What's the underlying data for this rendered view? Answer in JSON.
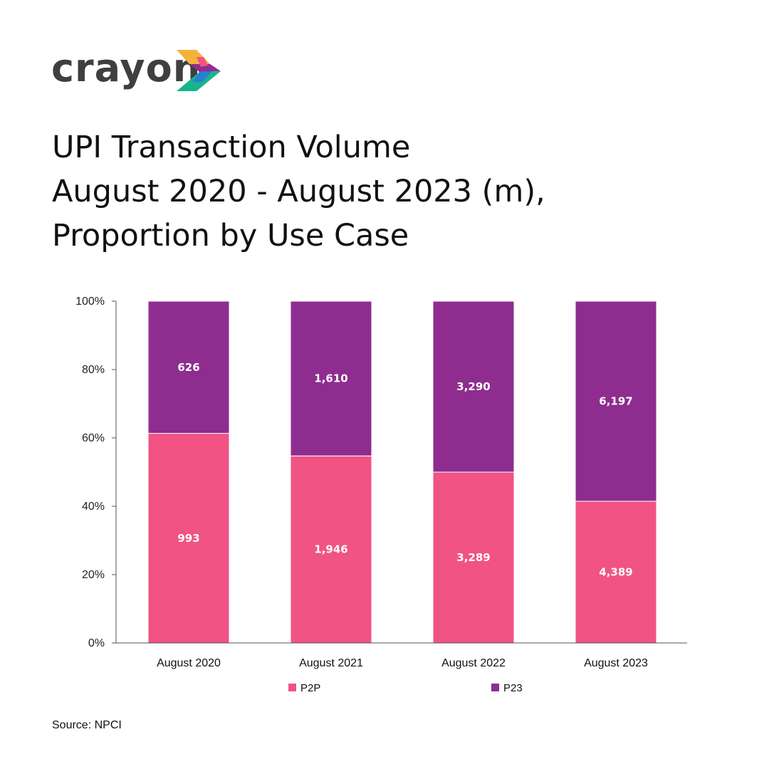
{
  "brand": {
    "name": "crayon",
    "text_color": "#3f3f3f"
  },
  "title_lines": [
    "UPI Transaction Volume",
    "August 2020 - August 2023 (m),",
    "Proportion by Use Case"
  ],
  "source": "Source: NPCI",
  "chart_data": {
    "type": "bar",
    "stacked": true,
    "normalized": true,
    "categories": [
      "August 2020",
      "August 2021",
      "August 2022",
      "August 2023"
    ],
    "series": [
      {
        "name": "P2P",
        "values": [
          993,
          1946,
          3289,
          4389
        ],
        "labels": [
          "993",
          "1,946",
          "3,289",
          "4,389"
        ],
        "color": "#f05384"
      },
      {
        "name": "P23",
        "values": [
          626,
          1610,
          3290,
          6197
        ],
        "labels": [
          "626",
          "1,610",
          "3,290",
          "6,197"
        ],
        "color": "#8e2d8f"
      }
    ],
    "yticks": [
      "0%",
      "20%",
      "40%",
      "60%",
      "80%",
      "100%"
    ],
    "ylim": [
      0,
      100
    ],
    "grid": false,
    "legend": "bottom"
  }
}
